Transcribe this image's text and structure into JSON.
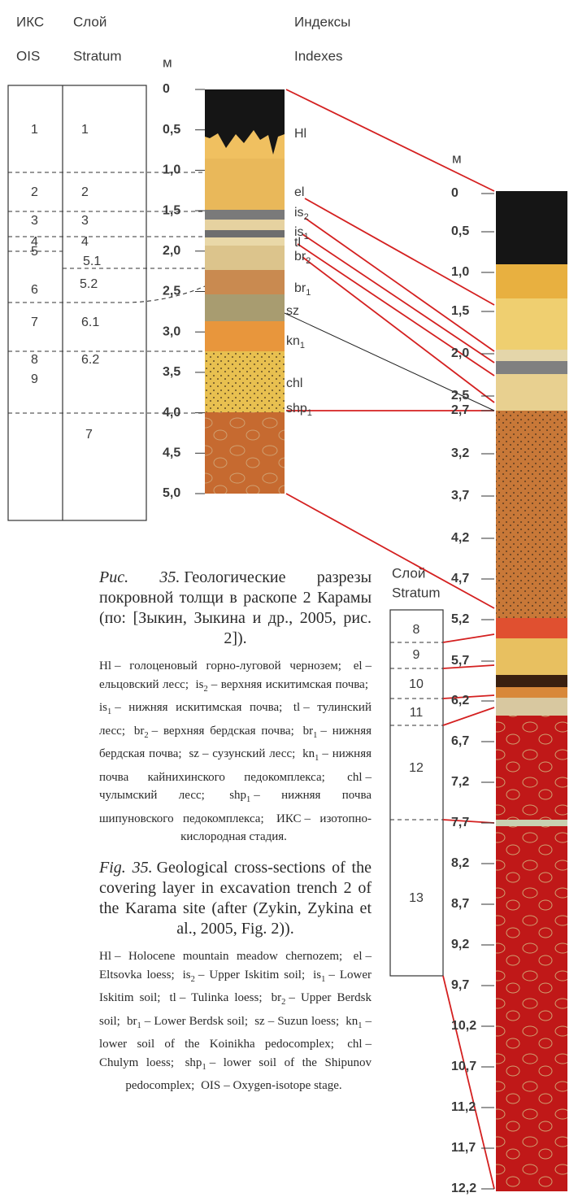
{
  "left_section": {
    "headers": {
      "ois_ru": "ИКС",
      "ois_en": "OIS",
      "stratum_ru": "Слой",
      "stratum_en": "Stratum",
      "unit": "м",
      "indexes_ru": "Индексы",
      "indexes_en": "Indexes"
    },
    "ois_labels": [
      "1",
      "2",
      "3",
      "4",
      "5",
      "6",
      "7",
      "8",
      "9"
    ],
    "stratum_labels": [
      "1",
      "2",
      "3",
      "4",
      "5.1",
      "5.2",
      "6.1",
      "6.2",
      "7"
    ],
    "depth_ticks": [
      "0",
      "0,5",
      "1,0",
      "1,5",
      "2,0",
      "2,5",
      "3,0",
      "3,5",
      "4,0",
      "4,5",
      "5,0"
    ],
    "indexes": [
      {
        "base": "Hl"
      },
      {
        "base": "el"
      },
      {
        "base": "is",
        "sub": "2"
      },
      {
        "base": "is",
        "sub": "1"
      },
      {
        "base": "tl"
      },
      {
        "base": "br",
        "sub": "2"
      },
      {
        "base": "br",
        "sub": "1"
      },
      {
        "base": "sz"
      },
      {
        "base": "kn",
        "sub": "1"
      },
      {
        "base": "chl"
      },
      {
        "base": "shp",
        "sub": "1"
      }
    ]
  },
  "right_section": {
    "unit": "м",
    "stratum_ru": "Слой",
    "stratum_en": "Stratum",
    "depth_ticks": [
      "0",
      "0,5",
      "1,0",
      "1,5",
      "2,0",
      "2,5",
      "2,7",
      "3,2",
      "3,7",
      "4,2",
      "4,7",
      "5,2",
      "5,7",
      "6,2",
      "6,7",
      "7,2",
      "7,7",
      "8,2",
      "8,7",
      "9,2",
      "9,7",
      "10,2",
      "10,7",
      "11,2",
      "11,7",
      "12,2"
    ],
    "stratum_labels": [
      "8",
      "9",
      "10",
      "11",
      "12",
      "13"
    ]
  },
  "caption_ru": {
    "label": "Рис. 35.",
    "text": "Геологические разрезы покровной толщи в раскопе 2 Карамы (по: [Зыкин, Зыкина и др., 2005, рис. 2]).",
    "legend": [
      {
        "abbr": "Hl",
        "text": "– голоценовый горно-луговой чернозем;"
      },
      {
        "abbr": "el",
        "text": "– ельцовский лесс;"
      },
      {
        "abbr": "is",
        "sub": "2",
        "text": "– верхняя искитимская почва;"
      },
      {
        "abbr": "is",
        "sub": "1",
        "text": "– нижняя искитимская почва;"
      },
      {
        "abbr": "tl",
        "text": "– тулинский лесс;"
      },
      {
        "abbr": "br",
        "sub": "2",
        "text": "– верхняя бердская почва;"
      },
      {
        "abbr": "br",
        "sub": "1",
        "text": "– нижняя бердская почва;"
      },
      {
        "abbr": "sz",
        "text": "– сузунский лесс;"
      },
      {
        "abbr": "kn",
        "sub": "1",
        "text": "– нижняя почва кайнихинского педокомплекса;"
      },
      {
        "abbr": "chl",
        "text": "– чулымский лесс;"
      },
      {
        "abbr": "shp",
        "sub": "1",
        "text": "– нижняя почва шипуновского педокомплекса;"
      },
      {
        "abbr": "ИКС",
        "text": "– изотопно-кислородная стадия."
      }
    ]
  },
  "caption_en": {
    "label": "Fig. 35.",
    "text": "Geological cross-sections of the covering layer in excavation trench 2 of the Karama site (after (Zykin, Zykina et al., 2005, Fig. 2)).",
    "legend": [
      {
        "abbr": "Hl",
        "text": "– Holocene mountain meadow chernozem;"
      },
      {
        "abbr": "el",
        "text": "– Eltsovka loess;"
      },
      {
        "abbr": "is",
        "sub": "2",
        "text": "– Upper Iskitim soil;"
      },
      {
        "abbr": "is",
        "sub": "1",
        "text": "– Lower Iskitim soil;"
      },
      {
        "abbr": "tl",
        "text": "– Tulinka loess;"
      },
      {
        "abbr": "br",
        "sub": "2",
        "text": "– Upper Berdsk soil;"
      },
      {
        "abbr": "br",
        "sub": "1",
        "text": "– Lower Berdsk soil;"
      },
      {
        "abbr": "sz",
        "text": "– Suzun loess;"
      },
      {
        "abbr": "kn",
        "sub": "1",
        "text": "– lower soil of the Koinikha pedocomplex;"
      },
      {
        "abbr": "chl",
        "text": "– Chulym loess;"
      },
      {
        "abbr": "shp",
        "sub": "1",
        "text": "– lower soil of the Shipunov pedocomplex;"
      },
      {
        "abbr": "OIS",
        "text": "– Oxygen-isotope stage."
      }
    ]
  }
}
